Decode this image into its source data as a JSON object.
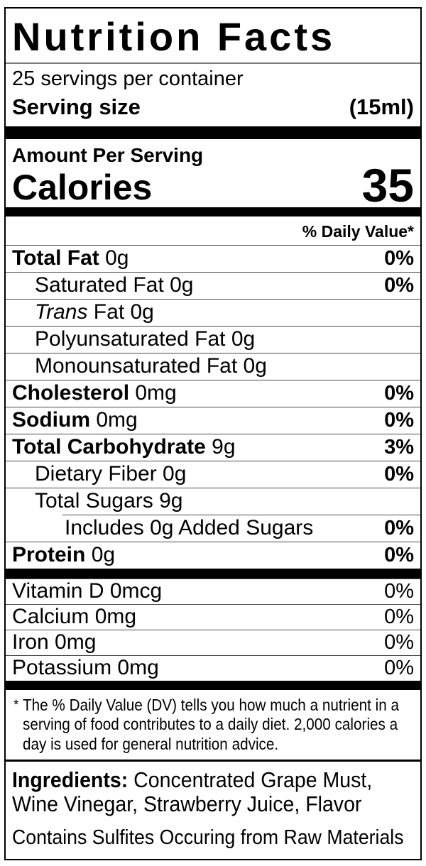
{
  "colors": {
    "text": "#000000",
    "bar": "#000000",
    "hairline": "#4a4a4a",
    "background": "#ffffff"
  },
  "label": {
    "title": "Nutrition Facts",
    "servings_per_container": "25 servings per container",
    "serving_size": {
      "label": "Serving size",
      "value": "(15ml)"
    },
    "amount_per_serving": "Amount Per Serving",
    "calories": {
      "label": "Calories",
      "value": "35"
    },
    "daily_value_header": "% Daily Value*",
    "rows": [
      {
        "b": "Total Fat",
        "t": " 0g",
        "dv": "0%"
      },
      {
        "t": "Saturated Fat 0g",
        "dv": "0%"
      },
      {
        "i": "Trans",
        "t": " Fat 0g"
      },
      {
        "t": "Polyunsaturated Fat 0g"
      },
      {
        "t": "Monounsaturated Fat 0g"
      },
      {
        "b": "Cholesterol",
        "t": " 0mg",
        "dv": "0%"
      },
      {
        "b": "Sodium",
        "t": " 0mg",
        "dv": "0%"
      },
      {
        "b": "Total Carbohydrate",
        "t": " 9g",
        "dv": "3%"
      },
      {
        "t": "Dietary Fiber 0g",
        "dv": "0%"
      },
      {
        "t": "Total Sugars 9g"
      },
      {
        "t": "Includes 0g Added Sugars",
        "dv": "0%"
      },
      {
        "b": "Protein",
        "t": " 0g",
        "dv": "0%"
      }
    ],
    "micronutrients": [
      {
        "t": "Vitamin D 0mcg",
        "dv": "0%"
      },
      {
        "t": "Calcium 0mg",
        "dv": "0%"
      },
      {
        "t": "Iron 0mg",
        "dv": "0%"
      },
      {
        "t": "Potassium 0mg",
        "dv": "0%"
      }
    ],
    "footnote": {
      "marker": "*",
      "lines": [
        "The % Daily Value (DV) tells you how much a nutrient in a",
        "serving of food contributes to a daily diet. 2,000 calories a",
        "day is used for general nutrition advice."
      ]
    },
    "ingredients": {
      "label": "Ingredients:",
      "line1_rest": " Concentrated Grape Must,",
      "line2": "Wine Vinegar, Strawberry Juice, Flavor"
    },
    "contains": "Contains Sulfites Occuring from Raw Materials"
  }
}
